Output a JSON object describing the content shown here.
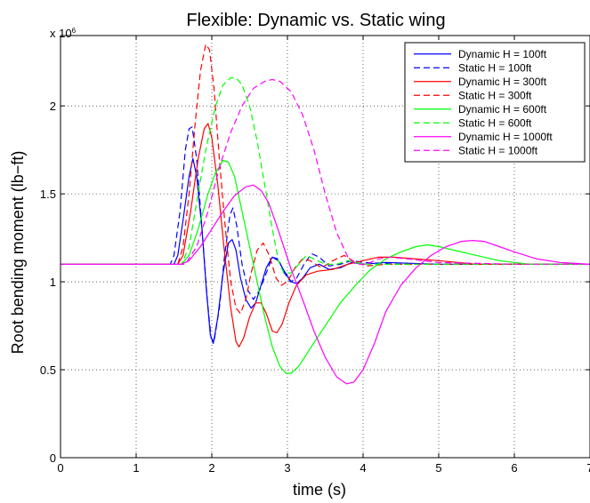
{
  "chart_data": {
    "type": "line",
    "title": "Flexible: Dynamic vs. Static wing",
    "xlabel": "time (s)",
    "ylabel": "Root bending moment (lb−ft)",
    "y_exponent_label": "x 10",
    "y_exponent_power": "6",
    "xlim": [
      0,
      7
    ],
    "ylim": [
      0,
      2.4
    ],
    "xticks": [
      0,
      1,
      2,
      3,
      4,
      5,
      6,
      7
    ],
    "xtick_labels": [
      "0",
      "1",
      "2",
      "3",
      "4",
      "5",
      "6",
      "7"
    ],
    "yticks": [
      0,
      0.5,
      1,
      1.5,
      2
    ],
    "ytick_labels": [
      "0",
      "0.5",
      "1",
      "1.5",
      "2"
    ],
    "grid": true,
    "legend_position": "top-right",
    "series": [
      {
        "name": "Dynamic H = 100ft",
        "color": "#0000ff",
        "dash": "solid",
        "points": [
          [
            0,
            1.1
          ],
          [
            1.5,
            1.1
          ],
          [
            1.55,
            1.15
          ],
          [
            1.62,
            1.35
          ],
          [
            1.7,
            1.6
          ],
          [
            1.75,
            1.7
          ],
          [
            1.8,
            1.6
          ],
          [
            1.87,
            1.3
          ],
          [
            1.93,
            0.95
          ],
          [
            1.98,
            0.7
          ],
          [
            2.02,
            0.65
          ],
          [
            2.08,
            0.8
          ],
          [
            2.15,
            1.05
          ],
          [
            2.22,
            1.22
          ],
          [
            2.27,
            1.24
          ],
          [
            2.32,
            1.18
          ],
          [
            2.38,
            1.02
          ],
          [
            2.45,
            0.9
          ],
          [
            2.52,
            0.85
          ],
          [
            2.58,
            0.88
          ],
          [
            2.65,
            0.98
          ],
          [
            2.72,
            1.08
          ],
          [
            2.8,
            1.14
          ],
          [
            2.88,
            1.12
          ],
          [
            2.96,
            1.06
          ],
          [
            3.05,
            1.0
          ],
          [
            3.12,
            0.99
          ],
          [
            3.2,
            1.02
          ],
          [
            3.3,
            1.08
          ],
          [
            3.42,
            1.1
          ],
          [
            3.55,
            1.07
          ],
          [
            3.7,
            1.08
          ],
          [
            3.85,
            1.11
          ],
          [
            4.0,
            1.1
          ],
          [
            4.3,
            1.11
          ],
          [
            5,
            1.1
          ],
          [
            7,
            1.1
          ]
        ]
      },
      {
        "name": "Static H = 100ft",
        "color": "#0000ff",
        "dash": "dashed",
        "points": [
          [
            0,
            1.1
          ],
          [
            1.45,
            1.1
          ],
          [
            1.5,
            1.15
          ],
          [
            1.58,
            1.4
          ],
          [
            1.65,
            1.75
          ],
          [
            1.7,
            1.87
          ],
          [
            1.74,
            1.88
          ],
          [
            1.8,
            1.7
          ],
          [
            1.87,
            1.3
          ],
          [
            1.94,
            0.9
          ],
          [
            1.99,
            0.68
          ],
          [
            2.03,
            0.66
          ],
          [
            2.1,
            0.85
          ],
          [
            2.17,
            1.15
          ],
          [
            2.24,
            1.38
          ],
          [
            2.28,
            1.42
          ],
          [
            2.33,
            1.32
          ],
          [
            2.4,
            1.1
          ],
          [
            2.48,
            0.95
          ],
          [
            2.55,
            0.9
          ],
          [
            2.63,
            0.95
          ],
          [
            2.72,
            1.05
          ],
          [
            2.8,
            1.14
          ],
          [
            2.88,
            1.13
          ],
          [
            2.96,
            1.05
          ],
          [
            3.04,
            1.0
          ],
          [
            3.12,
            1.02
          ],
          [
            3.22,
            1.1
          ],
          [
            3.32,
            1.16
          ],
          [
            3.42,
            1.14
          ],
          [
            3.55,
            1.09
          ],
          [
            3.7,
            1.1
          ],
          [
            3.85,
            1.12
          ],
          [
            4.0,
            1.11
          ],
          [
            4.5,
            1.1
          ],
          [
            7,
            1.1
          ]
        ]
      },
      {
        "name": "Dynamic H = 300ft",
        "color": "#ff0000",
        "dash": "solid",
        "points": [
          [
            0,
            1.1
          ],
          [
            1.55,
            1.1
          ],
          [
            1.62,
            1.15
          ],
          [
            1.72,
            1.4
          ],
          [
            1.82,
            1.7
          ],
          [
            1.9,
            1.87
          ],
          [
            1.95,
            1.9
          ],
          [
            2.0,
            1.82
          ],
          [
            2.08,
            1.55
          ],
          [
            2.16,
            1.2
          ],
          [
            2.25,
            0.85
          ],
          [
            2.32,
            0.66
          ],
          [
            2.36,
            0.63
          ],
          [
            2.42,
            0.68
          ],
          [
            2.5,
            0.8
          ],
          [
            2.58,
            0.88
          ],
          [
            2.65,
            0.88
          ],
          [
            2.72,
            0.82
          ],
          [
            2.8,
            0.72
          ],
          [
            2.86,
            0.71
          ],
          [
            2.93,
            0.76
          ],
          [
            3.02,
            0.88
          ],
          [
            3.12,
            0.98
          ],
          [
            3.25,
            1.04
          ],
          [
            3.4,
            1.06
          ],
          [
            3.6,
            1.07
          ],
          [
            3.8,
            1.1
          ],
          [
            4.0,
            1.12
          ],
          [
            4.2,
            1.14
          ],
          [
            4.4,
            1.14
          ],
          [
            4.7,
            1.13
          ],
          [
            5.0,
            1.12
          ],
          [
            5.5,
            1.1
          ],
          [
            6.0,
            1.1
          ],
          [
            7,
            1.1
          ]
        ]
      },
      {
        "name": "Static H = 300ft",
        "color": "#ff0000",
        "dash": "dashed",
        "points": [
          [
            0,
            1.1
          ],
          [
            1.55,
            1.1
          ],
          [
            1.62,
            1.2
          ],
          [
            1.7,
            1.5
          ],
          [
            1.78,
            1.9
          ],
          [
            1.85,
            2.2
          ],
          [
            1.92,
            2.35
          ],
          [
            1.97,
            2.32
          ],
          [
            2.03,
            2.1
          ],
          [
            2.1,
            1.7
          ],
          [
            2.18,
            1.3
          ],
          [
            2.25,
            1.0
          ],
          [
            2.32,
            0.85
          ],
          [
            2.38,
            0.82
          ],
          [
            2.45,
            0.9
          ],
          [
            2.52,
            1.05
          ],
          [
            2.6,
            1.18
          ],
          [
            2.68,
            1.22
          ],
          [
            2.76,
            1.15
          ],
          [
            2.85,
            1.02
          ],
          [
            2.92,
            0.98
          ],
          [
            3.0,
            1.0
          ],
          [
            3.1,
            1.08
          ],
          [
            3.2,
            1.13
          ],
          [
            3.3,
            1.12
          ],
          [
            3.45,
            1.08
          ],
          [
            3.6,
            1.12
          ],
          [
            3.75,
            1.15
          ],
          [
            3.9,
            1.11
          ],
          [
            4.05,
            1.09
          ],
          [
            4.3,
            1.1
          ],
          [
            4.6,
            1.1
          ],
          [
            7,
            1.1
          ]
        ]
      },
      {
        "name": "Dynamic H = 600ft",
        "color": "#00ff00",
        "dash": "solid",
        "points": [
          [
            0,
            1.1
          ],
          [
            1.6,
            1.1
          ],
          [
            1.7,
            1.15
          ],
          [
            1.82,
            1.3
          ],
          [
            1.95,
            1.5
          ],
          [
            2.05,
            1.62
          ],
          [
            2.15,
            1.69
          ],
          [
            2.22,
            1.68
          ],
          [
            2.3,
            1.6
          ],
          [
            2.4,
            1.4
          ],
          [
            2.5,
            1.2
          ],
          [
            2.6,
            1.0
          ],
          [
            2.7,
            0.8
          ],
          [
            2.8,
            0.63
          ],
          [
            2.9,
            0.52
          ],
          [
            2.98,
            0.48
          ],
          [
            3.05,
            0.48
          ],
          [
            3.15,
            0.52
          ],
          [
            3.3,
            0.62
          ],
          [
            3.5,
            0.75
          ],
          [
            3.7,
            0.88
          ],
          [
            3.9,
            0.98
          ],
          [
            4.1,
            1.07
          ],
          [
            4.3,
            1.13
          ],
          [
            4.5,
            1.17
          ],
          [
            4.7,
            1.2
          ],
          [
            4.85,
            1.21
          ],
          [
            5.0,
            1.2
          ],
          [
            5.2,
            1.18
          ],
          [
            5.5,
            1.15
          ],
          [
            5.8,
            1.12
          ],
          [
            6.2,
            1.1
          ],
          [
            7,
            1.1
          ]
        ]
      },
      {
        "name": "Static H = 600ft",
        "color": "#00ff00",
        "dash": "dashed",
        "points": [
          [
            0,
            1.1
          ],
          [
            1.6,
            1.1
          ],
          [
            1.7,
            1.2
          ],
          [
            1.8,
            1.45
          ],
          [
            1.92,
            1.75
          ],
          [
            2.05,
            2.0
          ],
          [
            2.15,
            2.12
          ],
          [
            2.25,
            2.16
          ],
          [
            2.32,
            2.16
          ],
          [
            2.4,
            2.12
          ],
          [
            2.5,
            2.0
          ],
          [
            2.6,
            1.8
          ],
          [
            2.7,
            1.55
          ],
          [
            2.8,
            1.3
          ],
          [
            2.88,
            1.12
          ],
          [
            2.95,
            1.05
          ],
          [
            3.05,
            1.05
          ],
          [
            3.15,
            1.1
          ],
          [
            3.25,
            1.15
          ],
          [
            3.35,
            1.13
          ],
          [
            3.5,
            1.1
          ],
          [
            3.65,
            1.1
          ],
          [
            3.8,
            1.12
          ],
          [
            4.0,
            1.1
          ],
          [
            4.5,
            1.1
          ],
          [
            7,
            1.1
          ]
        ]
      },
      {
        "name": "Dynamic H = 1000ft",
        "color": "#ff00ff",
        "dash": "solid",
        "points": [
          [
            0,
            1.1
          ],
          [
            1.6,
            1.1
          ],
          [
            1.7,
            1.12
          ],
          [
            1.85,
            1.2
          ],
          [
            2.0,
            1.3
          ],
          [
            2.15,
            1.4
          ],
          [
            2.3,
            1.49
          ],
          [
            2.45,
            1.54
          ],
          [
            2.55,
            1.55
          ],
          [
            2.65,
            1.52
          ],
          [
            2.75,
            1.45
          ],
          [
            2.85,
            1.33
          ],
          [
            2.95,
            1.2
          ],
          [
            3.05,
            1.07
          ],
          [
            3.2,
            0.9
          ],
          [
            3.35,
            0.72
          ],
          [
            3.5,
            0.57
          ],
          [
            3.65,
            0.46
          ],
          [
            3.78,
            0.42
          ],
          [
            3.88,
            0.43
          ],
          [
            4.0,
            0.5
          ],
          [
            4.15,
            0.65
          ],
          [
            4.3,
            0.83
          ],
          [
            4.5,
            0.98
          ],
          [
            4.7,
            1.08
          ],
          [
            4.9,
            1.15
          ],
          [
            5.1,
            1.2
          ],
          [
            5.3,
            1.23
          ],
          [
            5.45,
            1.235
          ],
          [
            5.6,
            1.23
          ],
          [
            5.8,
            1.2
          ],
          [
            6.0,
            1.17
          ],
          [
            6.3,
            1.13
          ],
          [
            6.6,
            1.11
          ],
          [
            7,
            1.1
          ]
        ]
      },
      {
        "name": "Static H = 1000ft",
        "color": "#ff00ff",
        "dash": "dashed",
        "points": [
          [
            0,
            1.1
          ],
          [
            1.65,
            1.1
          ],
          [
            1.8,
            1.2
          ],
          [
            1.95,
            1.4
          ],
          [
            2.1,
            1.65
          ],
          [
            2.25,
            1.85
          ],
          [
            2.4,
            2.0
          ],
          [
            2.55,
            2.1
          ],
          [
            2.7,
            2.14
          ],
          [
            2.8,
            2.15
          ],
          [
            2.9,
            2.14
          ],
          [
            3.05,
            2.08
          ],
          [
            3.2,
            1.95
          ],
          [
            3.35,
            1.75
          ],
          [
            3.5,
            1.5
          ],
          [
            3.65,
            1.28
          ],
          [
            3.8,
            1.14
          ],
          [
            3.9,
            1.1
          ],
          [
            4.05,
            1.1
          ],
          [
            4.2,
            1.13
          ],
          [
            4.35,
            1.14
          ],
          [
            4.6,
            1.13
          ],
          [
            5.0,
            1.11
          ],
          [
            6.0,
            1.1
          ],
          [
            7,
            1.1
          ]
        ]
      }
    ]
  }
}
